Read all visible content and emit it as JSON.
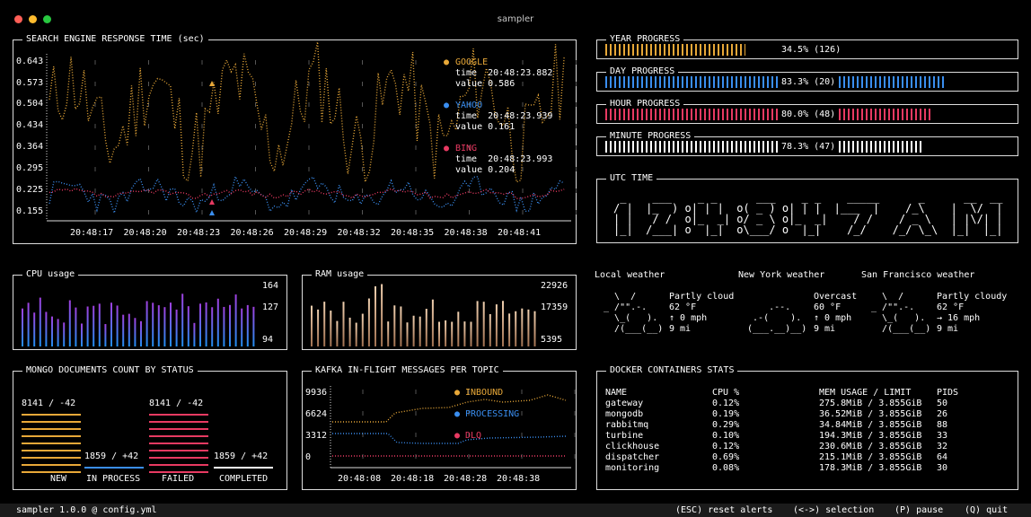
{
  "window": {
    "title": "sampler"
  },
  "search": {
    "title": "SEARCH ENGINE RESPONSE TIME (sec)",
    "yticks": [
      "0.643",
      "0.573",
      "0.504",
      "0.434",
      "0.364",
      "0.295",
      "0.225",
      "0.155"
    ],
    "xticks": [
      "20:48:17",
      "20:48:20",
      "20:48:23",
      "20:48:26",
      "20:48:29",
      "20:48:32",
      "20:48:35",
      "20:48:38",
      "20:48:41"
    ],
    "legend": [
      {
        "name": "GOOGLE",
        "time": "time  20:48:23.882",
        "value": "value 0.586",
        "color": "#e8a838"
      },
      {
        "name": "YAHOO",
        "time": "time  20:48:23.939",
        "value": "value 0.161",
        "color": "#3a8ef0"
      },
      {
        "name": "BING",
        "time": "time  20:48:23.993",
        "value": "value 0.204",
        "color": "#e83a62"
      }
    ]
  },
  "progress": [
    {
      "title": "YEAR PROGRESS",
      "label": "34.5% (126)",
      "fraction": 0.345,
      "color": "#e8a838"
    },
    {
      "title": "DAY PROGRESS",
      "label": "83.3% (20)",
      "fraction": 0.833,
      "color": "#3a8ef0"
    },
    {
      "title": "HOUR PROGRESS",
      "label": "80.0% (48)",
      "fraction": 0.8,
      "color": "#e83a62"
    },
    {
      "title": "MINUTE PROGRESS",
      "label": "78.3% (47)",
      "fraction": 0.783,
      "color": "#ffffff"
    }
  ],
  "utc": {
    "title": "UTC TIME",
    "ascii": " _    ___    _ _      ___    _ _    _____      _      __  __ \n/ |  |_  ) o| | |  o( _ ) o| | |  |___  |    /_\\    |  \\/  |\n| |   / /  o|_  _| o/ _ \\ o|_  _|    / /    / _ \\   | |\\/| |\n|_|  /___| o  |_|  o\\___/ o  |_|    /_/    /_/ \\_\\  |_|  |_|"
  },
  "cpu": {
    "title": "CPU usage",
    "yticks": [
      "164",
      "127",
      "94"
    ],
    "color": "#8a4cf0"
  },
  "ram": {
    "title": "RAM usage",
    "yticks": [
      "22926",
      "17359",
      "5395"
    ],
    "color": "#e8b888"
  },
  "weather": [
    {
      "title": "Local weather",
      "art": "   \\  /      \n _ /\"\".-.    \n   \\_(   ).  \n   /(___(__) ",
      "condition": "Partly cloud",
      "temp": "62 °F",
      "wind": "↑ 0 mph",
      "vis": "9 mi"
    },
    {
      "title": "New York weather",
      "art": "            \n     .--.    \n  .-(    ).  \n (___.__)__) ",
      "condition": "Overcast",
      "temp": "60 °F",
      "wind": "↑ 0 mph",
      "vis": "9 mi"
    },
    {
      "title": "San Francisco weather",
      "art": "   \\  /      \n _ /\"\".-.    \n   \\_(   ).  \n   /(___(__) ",
      "condition": "Partly cloudy",
      "temp": "62 °F",
      "wind": "→ 16 mph",
      "vis": "9 mi"
    }
  ],
  "mongo": {
    "title": "MONGO DOCUMENTS COUNT BY STATUS",
    "columns": [
      {
        "label": "NEW",
        "value": "8141 / -42",
        "color": "#e8a838"
      },
      {
        "label": "IN PROCESS",
        "value": "1859 / +42",
        "color": "#3a8ef0"
      },
      {
        "label": "FAILED",
        "value": "8141 / -42",
        "color": "#e83a62"
      },
      {
        "label": "COMPLETED",
        "value": "1859 / +42",
        "color": "#ffffff"
      }
    ]
  },
  "kafka": {
    "title": "KAFKA IN-FLIGHT MESSAGES PER TOPIC",
    "yticks": [
      "9936",
      "6624",
      "3312",
      "0"
    ],
    "xticks": [
      "20:48:08",
      "20:48:18",
      "20:48:28",
      "20:48:38"
    ],
    "legend": [
      {
        "name": "INBOUND",
        "color": "#e8a838"
      },
      {
        "name": "PROCESSING",
        "color": "#3a8ef0"
      },
      {
        "name": "DLQ",
        "color": "#e83a62"
      }
    ]
  },
  "docker": {
    "title": "DOCKER CONTAINERS STATS",
    "headers": [
      "NAME",
      "CPU %",
      "MEM USAGE / LIMIT",
      "PIDS"
    ],
    "rows": [
      [
        "gateway",
        "0.12%",
        "275.8MiB / 3.855GiB",
        "50"
      ],
      [
        "mongodb",
        "0.19%",
        "36.52MiB / 3.855GiB",
        "26"
      ],
      [
        "rabbitmq",
        "0.29%",
        "34.84MiB / 3.855GiB",
        "88"
      ],
      [
        "turbine",
        "0.10%",
        "194.3MiB / 3.855GiB",
        "33"
      ],
      [
        "clickhouse",
        "0.12%",
        "230.6MiB / 3.855GiB",
        "32"
      ],
      [
        "dispatcher",
        "0.69%",
        "215.1MiB / 3.855GiB",
        "64"
      ],
      [
        "monitoring",
        "0.08%",
        "178.3MiB / 3.855GiB",
        "30"
      ]
    ]
  },
  "statusbar": {
    "left": "sampler 1.0.0 @ config.yml",
    "items": [
      "(ESC) reset alerts",
      "(<->) selection",
      "(P) pause",
      "(Q) quit"
    ]
  }
}
